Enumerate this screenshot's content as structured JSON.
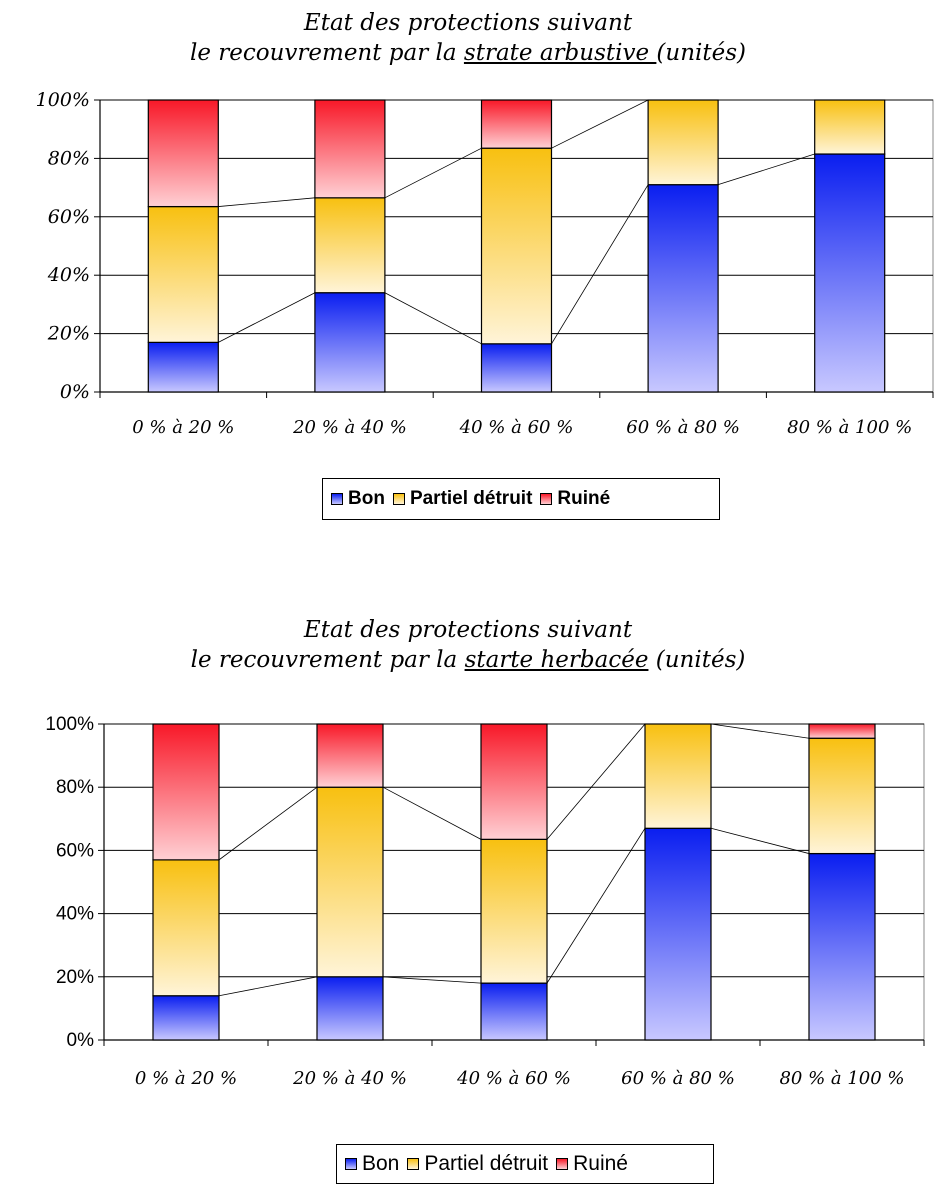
{
  "colors": {
    "bon_dark": "#0a1ef0",
    "bon_light": "#c8c8ff",
    "partiel_dark": "#f8c010",
    "partiel_light": "#fff4d8",
    "ruine_dark": "#f81828",
    "ruine_light": "#ffd0d4"
  },
  "chart_data": [
    {
      "type": "bar",
      "stacked": true,
      "title_line1": "Etat des protections suivant",
      "title_line2_pre": "le recouvrement par la ",
      "title_line2_underlined": "strate arbustive ",
      "title_line2_post": "(unités)",
      "categories": [
        "0 % à 20 %",
        "20 % à 40 %",
        "40 % à 60 %",
        "60 % à 80 %",
        "80 % à 100 %"
      ],
      "series": [
        {
          "name": "Bon",
          "values": [
            17,
            34,
            16.5,
            71,
            81.5
          ]
        },
        {
          "name": "Partiel détruit",
          "values": [
            46.5,
            32.5,
            67,
            29,
            18.5
          ]
        },
        {
          "name": "Ruiné",
          "values": [
            36.5,
            33.5,
            16.5,
            0,
            0
          ]
        }
      ],
      "ylim": [
        0,
        100
      ],
      "yticks": [
        "0%",
        "20%",
        "40%",
        "60%",
        "80%",
        "100%"
      ],
      "grid": true,
      "series_lines": true,
      "legend": "bottom"
    },
    {
      "type": "bar",
      "stacked": true,
      "title_line1": "Etat des protections suivant",
      "title_line2_pre": "le recouvrement par la ",
      "title_line2_underlined": "starte herbacée",
      "title_line2_post": " (unités)",
      "categories": [
        "0 % à 20 %",
        "20 % à 40 %",
        "40 % à 60 %",
        "60 % à 80 %",
        "80 % à 100 %"
      ],
      "series": [
        {
          "name": "Bon",
          "values": [
            14,
            20,
            18,
            67,
            59
          ]
        },
        {
          "name": "Partiel détruit",
          "values": [
            43,
            60,
            45.5,
            33,
            36.5
          ]
        },
        {
          "name": "Ruiné",
          "values": [
            43,
            20,
            36.5,
            0,
            4.5
          ]
        }
      ],
      "ylim": [
        0,
        100
      ],
      "yticks": [
        "0%",
        "20%",
        "40%",
        "60%",
        "80%",
        "100%"
      ],
      "grid": true,
      "series_lines": true,
      "legend": "bottom"
    }
  ]
}
